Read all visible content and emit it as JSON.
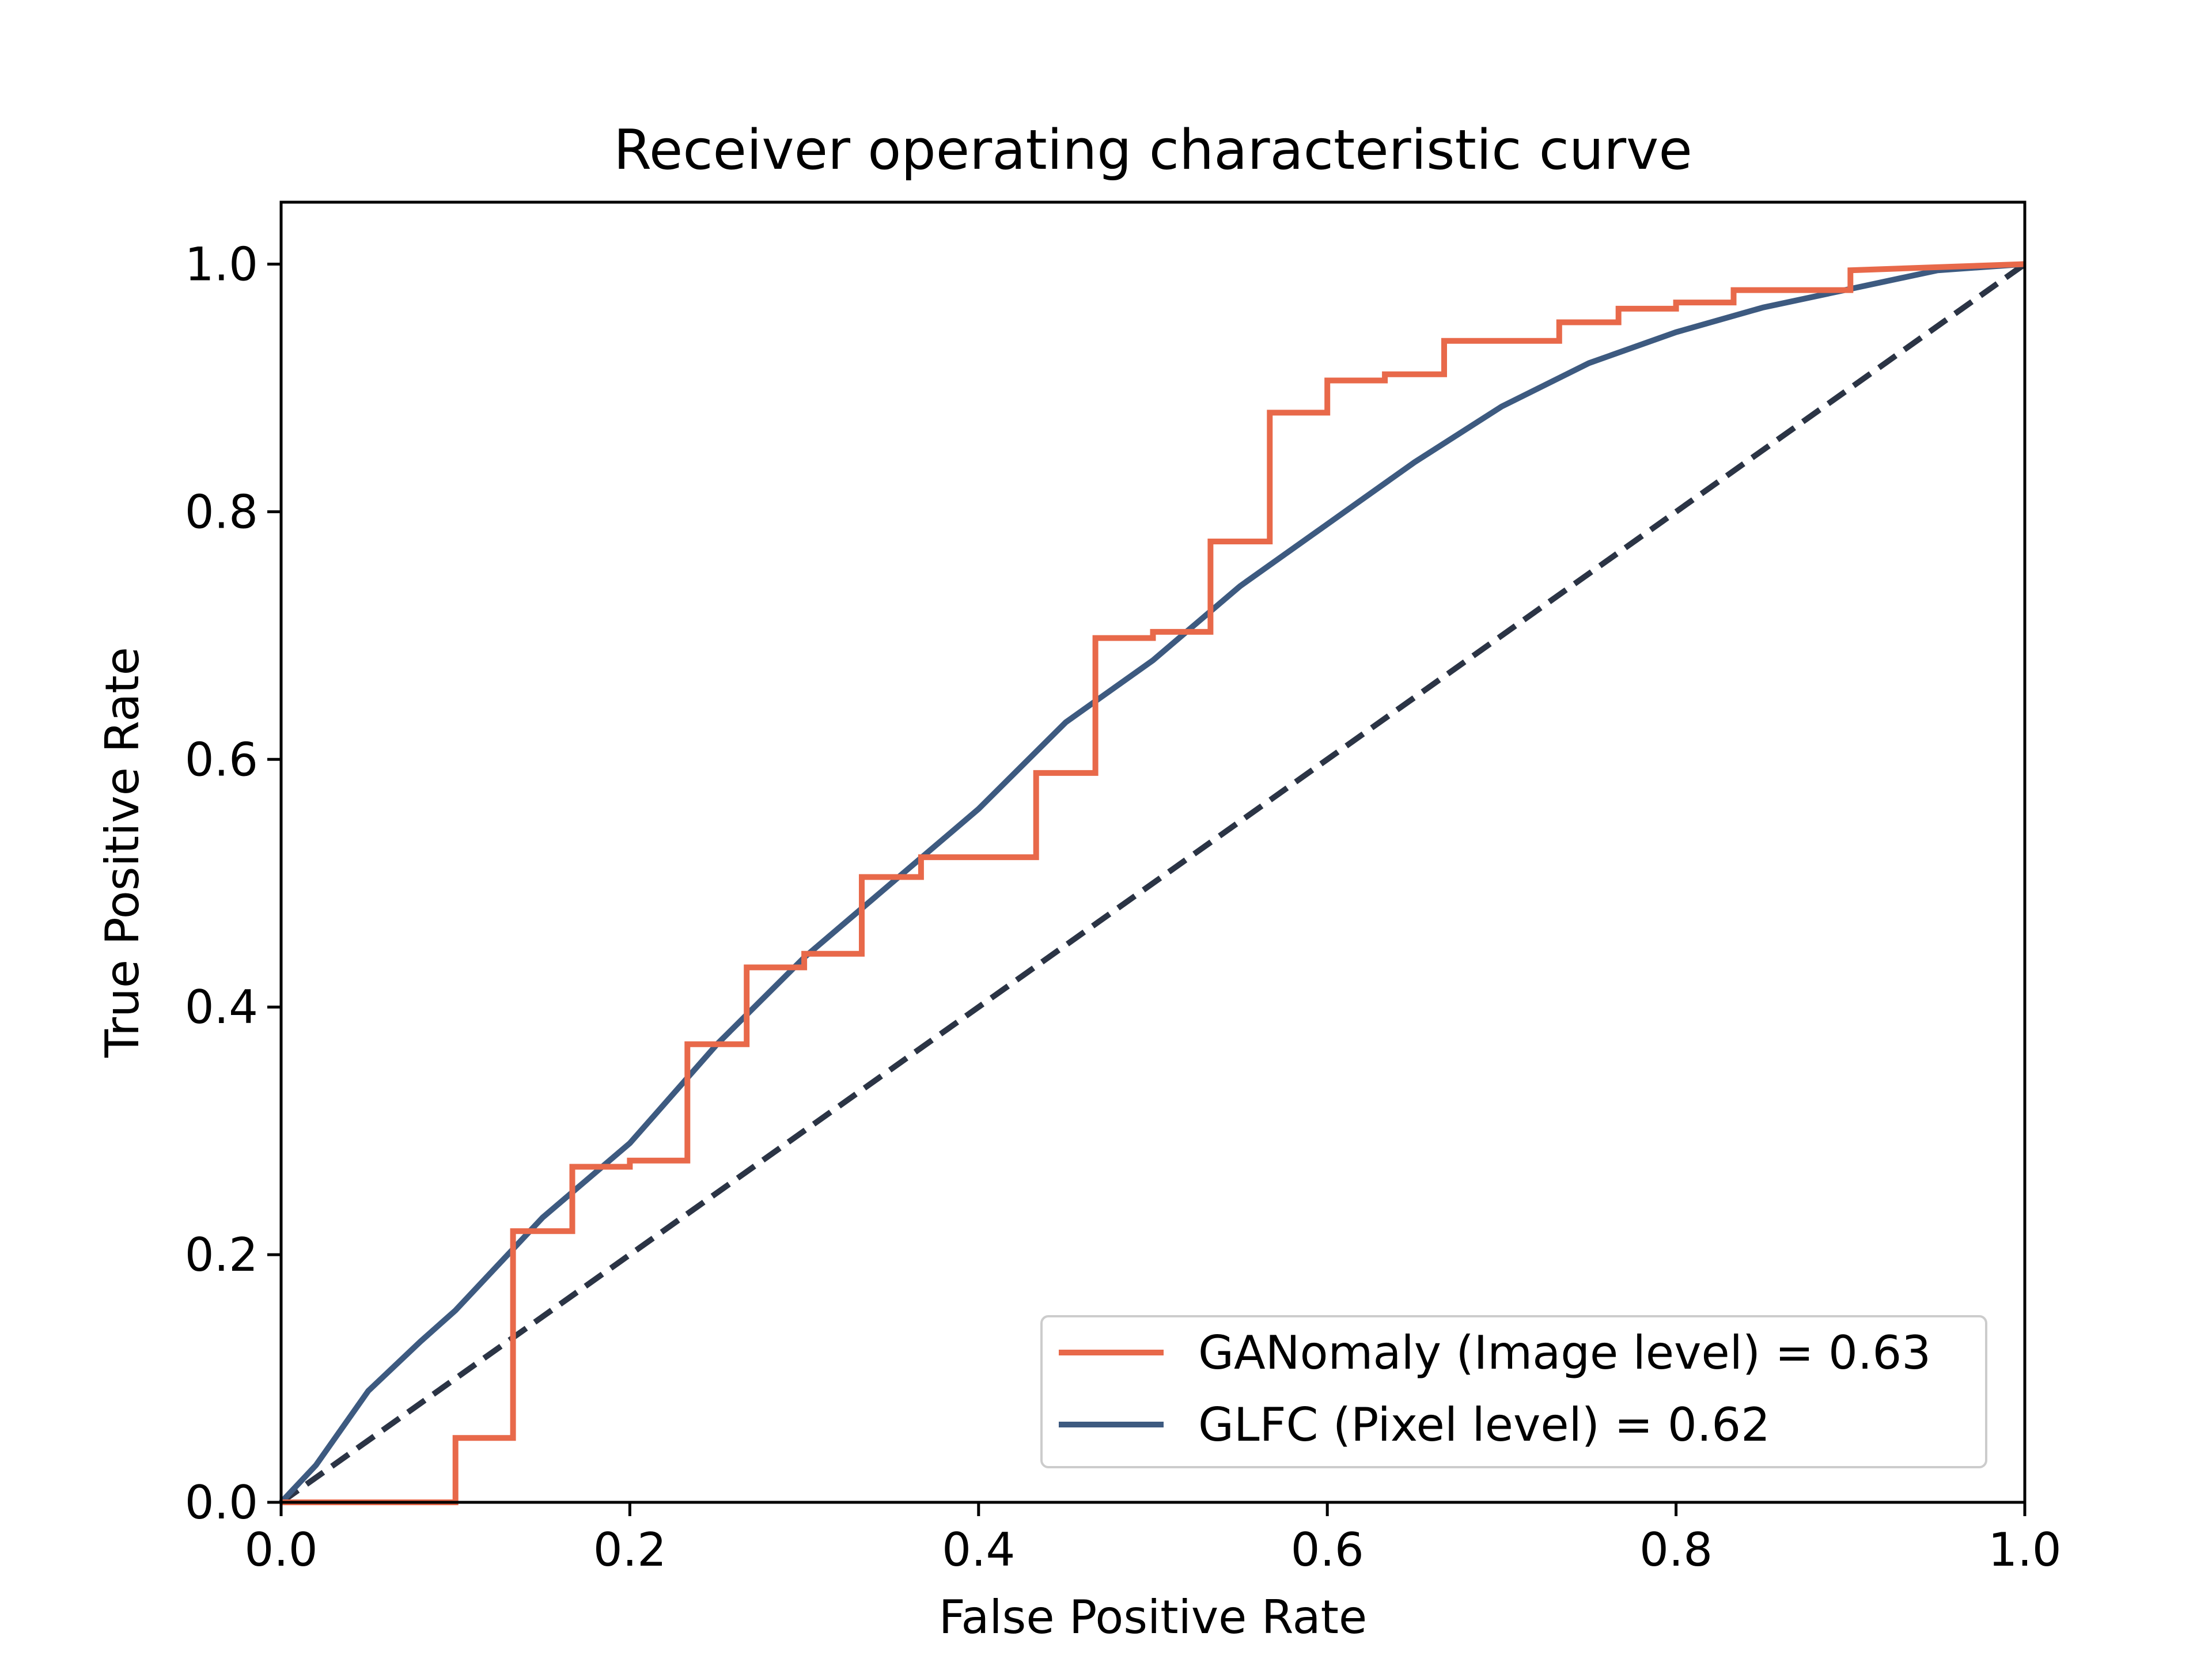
{
  "chart_data": {
    "type": "line",
    "title": "Receiver operating characteristic curve",
    "xlabel": "False Positive Rate",
    "ylabel": "True Positive Rate",
    "xlim": [
      0.0,
      1.0
    ],
    "ylim": [
      0.0,
      1.05
    ],
    "xticks": [
      "0.0",
      "0.2",
      "0.4",
      "0.6",
      "0.8",
      "1.0"
    ],
    "yticks": [
      "0.0",
      "0.2",
      "0.4",
      "0.6",
      "0.8",
      "1.0"
    ],
    "grid": false,
    "legend_position": "lower-right",
    "series": [
      {
        "name": "GANomaly (Image level) = 0.63",
        "color": "#e8694a",
        "style": "step",
        "x": [
          0.0,
          0.1,
          0.1,
          0.133,
          0.133,
          0.167,
          0.167,
          0.2,
          0.2,
          0.233,
          0.233,
          0.267,
          0.267,
          0.3,
          0.3,
          0.333,
          0.333,
          0.367,
          0.367,
          0.433,
          0.433,
          0.467,
          0.467,
          0.5,
          0.5,
          0.533,
          0.533,
          0.567,
          0.567,
          0.6,
          0.6,
          0.633,
          0.633,
          0.667,
          0.667,
          0.733,
          0.733,
          0.767,
          0.767,
          0.8,
          0.8,
          0.833,
          0.833,
          0.9,
          0.9,
          1.0
        ],
        "y": [
          0.0,
          0.0,
          0.052,
          0.052,
          0.219,
          0.219,
          0.271,
          0.271,
          0.276,
          0.276,
          0.37,
          0.37,
          0.432,
          0.432,
          0.443,
          0.443,
          0.505,
          0.505,
          0.521,
          0.521,
          0.589,
          0.589,
          0.698,
          0.698,
          0.703,
          0.703,
          0.776,
          0.776,
          0.88,
          0.88,
          0.906,
          0.906,
          0.911,
          0.911,
          0.938,
          0.938,
          0.953,
          0.953,
          0.964,
          0.964,
          0.969,
          0.969,
          0.979,
          0.979,
          0.995,
          1.0
        ]
      },
      {
        "name": "GLFC (Pixel level) = 0.62",
        "color": "#3d5a80",
        "style": "line",
        "x": [
          0.0,
          0.02,
          0.05,
          0.08,
          0.1,
          0.13,
          0.15,
          0.2,
          0.25,
          0.3,
          0.35,
          0.4,
          0.45,
          0.5,
          0.55,
          0.6,
          0.65,
          0.7,
          0.75,
          0.8,
          0.85,
          0.9,
          0.95,
          1.0
        ],
        "y": [
          0.0,
          0.03,
          0.09,
          0.13,
          0.155,
          0.2,
          0.23,
          0.29,
          0.37,
          0.44,
          0.5,
          0.56,
          0.63,
          0.68,
          0.74,
          0.79,
          0.84,
          0.885,
          0.92,
          0.945,
          0.965,
          0.98,
          0.995,
          1.0
        ]
      },
      {
        "name": "",
        "color": "#2b3445",
        "style": "dashed",
        "x": [
          0.0,
          1.0
        ],
        "y": [
          0.0,
          1.0
        ]
      }
    ]
  }
}
